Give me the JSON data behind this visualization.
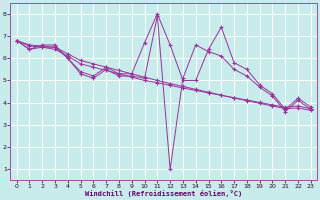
{
  "background_color": "#c8ecec",
  "grid_color": "#ffffff",
  "line_color": "#993399",
  "xlabel": "Windchill (Refroidissement éolien,°C)",
  "xlim": [
    -0.5,
    23.5
  ],
  "ylim": [
    0.5,
    8.5
  ],
  "xticks": [
    0,
    1,
    2,
    3,
    4,
    5,
    6,
    7,
    8,
    9,
    10,
    11,
    12,
    13,
    14,
    15,
    16,
    17,
    18,
    19,
    20,
    21,
    22,
    23
  ],
  "yticks": [
    1,
    2,
    3,
    4,
    5,
    6,
    7,
    8
  ],
  "series": [
    [
      6.8,
      6.4,
      6.6,
      6.6,
      6.0,
      5.4,
      5.2,
      5.6,
      5.3,
      5.3,
      6.7,
      8.0,
      6.6,
      5.0,
      5.0,
      6.4,
      7.4,
      5.8,
      5.5,
      4.8,
      4.4,
      3.7,
      4.2,
      3.8
    ],
    [
      6.8,
      6.4,
      6.5,
      6.5,
      6.0,
      5.3,
      5.1,
      5.5,
      5.2,
      5.2,
      5.1,
      7.9,
      1.0,
      5.1,
      6.6,
      6.3,
      6.1,
      5.5,
      5.2,
      4.7,
      4.3,
      3.6,
      4.1,
      3.7
    ],
    [
      6.8,
      6.55,
      6.5,
      6.4,
      6.1,
      5.75,
      5.6,
      5.45,
      5.3,
      5.15,
      5.0,
      4.9,
      4.78,
      4.66,
      4.55,
      4.44,
      4.33,
      4.22,
      4.12,
      4.01,
      3.9,
      3.79,
      3.85,
      3.72
    ],
    [
      6.8,
      6.6,
      6.55,
      6.5,
      6.2,
      5.9,
      5.75,
      5.6,
      5.45,
      5.3,
      5.15,
      5.0,
      4.86,
      4.73,
      4.6,
      4.47,
      4.34,
      4.21,
      4.09,
      3.97,
      3.85,
      3.73,
      3.76,
      3.65
    ]
  ]
}
